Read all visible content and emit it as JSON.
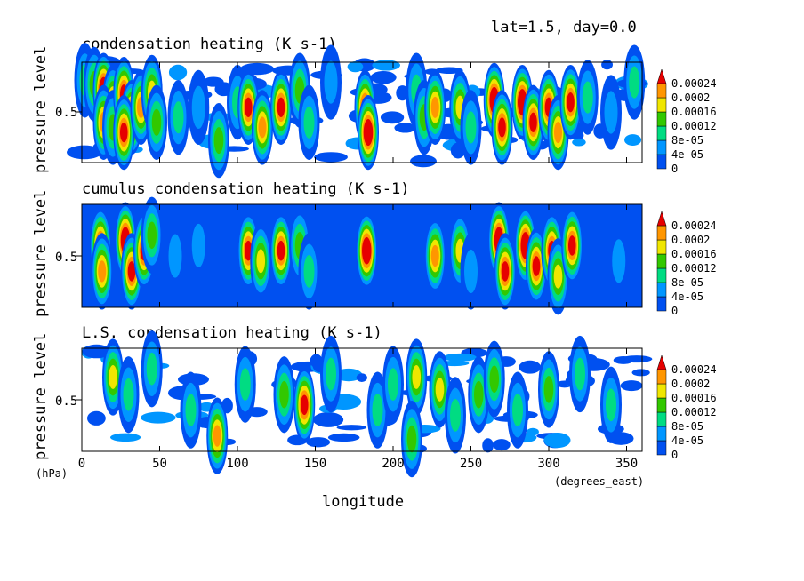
{
  "header": {
    "info": "lat=1.5, day=0.0"
  },
  "axes": {
    "ylabel": "pressure level",
    "yunit": "(hPa)",
    "xlabel": "longitude",
    "xunit": "(degrees_east)",
    "xticks": [
      "0",
      "50",
      "100",
      "150",
      "200",
      "250",
      "300",
      "350"
    ],
    "ytick": "0.5"
  },
  "colorbar": {
    "labels": [
      "0.00024",
      "0.0002",
      "0.00016",
      "0.00012",
      "8e-05",
      "4e-05",
      "0"
    ],
    "colors": [
      "#0050f0",
      "#0096ff",
      "#00dc82",
      "#32c800",
      "#f0e600",
      "#ff9600",
      "#e60000"
    ]
  },
  "chart_data": [
    {
      "type": "heatmap",
      "title": "condensation heating (K s-1)",
      "xlabel": "longitude",
      "ylabel": "pressure level",
      "xlim": [
        0,
        360
      ],
      "levels": [
        0,
        4e-05,
        8e-05,
        0.00012,
        0.00016,
        0.0002,
        0.00024
      ],
      "background": "white",
      "cells": [
        [
          2,
          0.82,
          2
        ],
        [
          8,
          0.78,
          3
        ],
        [
          14,
          0.72,
          7
        ],
        [
          20,
          0.6,
          5
        ],
        [
          14,
          0.4,
          5
        ],
        [
          20,
          0.35,
          3
        ],
        [
          27,
          0.68,
          6
        ],
        [
          32,
          0.45,
          7
        ],
        [
          27,
          0.3,
          6
        ],
        [
          38,
          0.55,
          5
        ],
        [
          45,
          0.7,
          4
        ],
        [
          48,
          0.4,
          3
        ],
        [
          62,
          0.45,
          2
        ],
        [
          75,
          0.55,
          1
        ],
        [
          88,
          0.22,
          3
        ],
        [
          100,
          0.6,
          2
        ],
        [
          107,
          0.55,
          6
        ],
        [
          116,
          0.35,
          5
        ],
        [
          128,
          0.55,
          6
        ],
        [
          140,
          0.72,
          3
        ],
        [
          146,
          0.4,
          2
        ],
        [
          160,
          0.8,
          1
        ],
        [
          182,
          0.55,
          6
        ],
        [
          184,
          0.3,
          7
        ],
        [
          215,
          0.72,
          2
        ],
        [
          220,
          0.45,
          3
        ],
        [
          227,
          0.55,
          5
        ],
        [
          243,
          0.55,
          4
        ],
        [
          250,
          0.35,
          2
        ],
        [
          265,
          0.62,
          7
        ],
        [
          270,
          0.35,
          6
        ],
        [
          283,
          0.6,
          7
        ],
        [
          290,
          0.4,
          6
        ],
        [
          300,
          0.55,
          6
        ],
        [
          306,
          0.3,
          5
        ],
        [
          314,
          0.6,
          6
        ],
        [
          325,
          0.65,
          2
        ],
        [
          340,
          0.5,
          1
        ],
        [
          355,
          0.8,
          2
        ]
      ]
    },
    {
      "type": "heatmap",
      "title": "cumulus condensation heating (K s-1)",
      "xlabel": "longitude",
      "ylabel": "pressure level",
      "xlim": [
        0,
        360
      ],
      "levels": [
        0,
        4e-05,
        8e-05,
        0.00012,
        0.00016,
        0.0002,
        0.00024
      ],
      "background": "level-0",
      "cells": [
        [
          12,
          0.6,
          6
        ],
        [
          13,
          0.35,
          5
        ],
        [
          28,
          0.65,
          7
        ],
        [
          32,
          0.35,
          6
        ],
        [
          40,
          0.55,
          6
        ],
        [
          45,
          0.7,
          3
        ],
        [
          60,
          0.5,
          1
        ],
        [
          75,
          0.6,
          1
        ],
        [
          107,
          0.55,
          6
        ],
        [
          115,
          0.45,
          4
        ],
        [
          128,
          0.55,
          6
        ],
        [
          140,
          0.6,
          3
        ],
        [
          146,
          0.35,
          2
        ],
        [
          183,
          0.55,
          7
        ],
        [
          227,
          0.5,
          5
        ],
        [
          243,
          0.55,
          4
        ],
        [
          250,
          0.35,
          1
        ],
        [
          268,
          0.65,
          7
        ],
        [
          272,
          0.35,
          6
        ],
        [
          285,
          0.6,
          7
        ],
        [
          292,
          0.4,
          6
        ],
        [
          302,
          0.55,
          6
        ],
        [
          306,
          0.3,
          4
        ],
        [
          315,
          0.6,
          6
        ],
        [
          345,
          0.45,
          1
        ]
      ]
    },
    {
      "type": "heatmap",
      "title": "L.S. condensation heating (K s-1)",
      "xlabel": "longitude",
      "ylabel": "pressure level",
      "xlim": [
        0,
        360
      ],
      "levels": [
        0,
        4e-05,
        8e-05,
        0.00012,
        0.00016,
        0.0002,
        0.00024
      ],
      "background": "white",
      "cells": [
        [
          20,
          0.72,
          4
        ],
        [
          30,
          0.55,
          2
        ],
        [
          45,
          0.8,
          2
        ],
        [
          70,
          0.4,
          2
        ],
        [
          87,
          0.15,
          5
        ],
        [
          105,
          0.65,
          2
        ],
        [
          130,
          0.55,
          3
        ],
        [
          143,
          0.45,
          6
        ],
        [
          160,
          0.75,
          2
        ],
        [
          190,
          0.4,
          2
        ],
        [
          200,
          0.65,
          2
        ],
        [
          215,
          0.72,
          4
        ],
        [
          230,
          0.6,
          4
        ],
        [
          240,
          0.35,
          2
        ],
        [
          255,
          0.55,
          3
        ],
        [
          265,
          0.7,
          3
        ],
        [
          280,
          0.4,
          2
        ],
        [
          300,
          0.6,
          3
        ],
        [
          320,
          0.75,
          2
        ],
        [
          340,
          0.45,
          2
        ],
        [
          212,
          0.12,
          3
        ]
      ]
    }
  ]
}
